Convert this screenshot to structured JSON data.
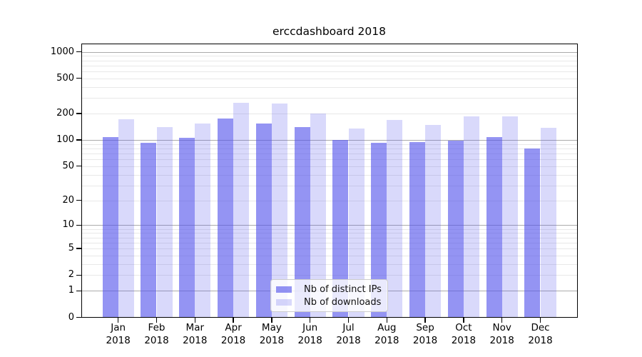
{
  "title": "erccdashboard 2018",
  "chart_data": {
    "type": "bar",
    "title": "erccdashboard 2018",
    "categories": [
      "Jan",
      "Feb",
      "Mar",
      "Apr",
      "May",
      "Jun",
      "Jul",
      "Aug",
      "Sep",
      "Oct",
      "Nov",
      "Dec"
    ],
    "category_year": "2018",
    "series": [
      {
        "name": "Nb of distinct IPs",
        "values": [
          108,
          93,
          105,
          174,
          154,
          140,
          100,
          92,
          94,
          98,
          107,
          80
        ],
        "color": "rgba(82,82,235,0.62)"
      },
      {
        "name": "Nb of downloads",
        "values": [
          172,
          141,
          155,
          266,
          260,
          200,
          135,
          170,
          148,
          186,
          186,
          138
        ],
        "color": "rgba(82,82,235,0.22)"
      }
    ],
    "y_ticks": [
      0,
      1,
      2,
      5,
      10,
      20,
      50,
      100,
      200,
      500,
      1000
    ],
    "y_scale": "log10(1+y)",
    "ylim": [
      0,
      1250
    ],
    "xlabel": "",
    "ylabel": "",
    "legend_position": "lower-center",
    "grid": {
      "major_lines_at": [
        1,
        10,
        100,
        1000
      ],
      "major_color": "#ababab",
      "minor_color": "#e8e8e8"
    }
  },
  "legend": {
    "items": [
      {
        "label": "Nb of distinct IPs"
      },
      {
        "label": "Nb of downloads"
      }
    ]
  }
}
